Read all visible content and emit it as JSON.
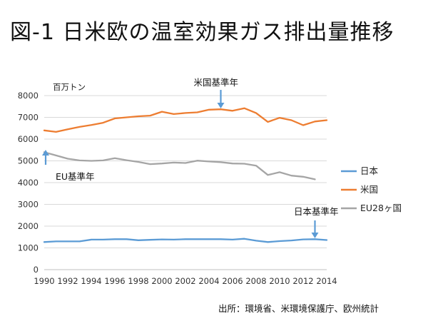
{
  "page": {
    "title": "図-1 日米欧の温室効果ガス排出量推移",
    "source": "出所：環境省、米環境保護庁、欧州統計"
  },
  "chart_data": {
    "type": "line",
    "unit_label": "百万トン",
    "x": [
      1990,
      1991,
      1992,
      1993,
      1994,
      1995,
      1996,
      1997,
      1998,
      1999,
      2000,
      2001,
      2002,
      2003,
      2004,
      2005,
      2006,
      2007,
      2008,
      2009,
      2010,
      2011,
      2012,
      2013,
      2014
    ],
    "x_tick_labels": [
      "1990",
      "1992",
      "1994",
      "1996",
      "1998",
      "2000",
      "2002",
      "2004",
      "2006",
      "2008",
      "2010",
      "2012",
      "2014"
    ],
    "y_tick_labels": [
      "0",
      "1000",
      "2000",
      "3000",
      "4000",
      "5000",
      "6000",
      "7000",
      "8000"
    ],
    "ylim": [
      0,
      8000
    ],
    "grid": "horizontal",
    "legend_position": "right",
    "series": [
      {
        "name": "日本",
        "color": "#5b9bd5",
        "values": [
          1270,
          1300,
          1300,
          1300,
          1380,
          1380,
          1400,
          1400,
          1350,
          1370,
          1390,
          1380,
          1400,
          1400,
          1400,
          1400,
          1380,
          1420,
          1330,
          1270,
          1310,
          1340,
          1390,
          1400,
          1360
        ]
      },
      {
        "name": "米国",
        "color": "#ed7d31",
        "values": [
          6400,
          6330,
          6450,
          6560,
          6650,
          6750,
          6950,
          7000,
          7050,
          7080,
          7260,
          7150,
          7200,
          7230,
          7350,
          7370,
          7300,
          7420,
          7200,
          6790,
          6980,
          6870,
          6640,
          6810,
          6870
        ]
      },
      {
        "name": "EU28ヶ国",
        "color": "#a5a5a5",
        "values": [
          5400,
          5250,
          5100,
          5020,
          5000,
          5020,
          5120,
          5030,
          4950,
          4850,
          4880,
          4920,
          4900,
          5010,
          4970,
          4940,
          4880,
          4870,
          4780,
          4350,
          4480,
          4320,
          4270,
          4150,
          null
        ]
      }
    ],
    "annotations": [
      {
        "text": "米国基準年",
        "year": 2005,
        "series": "米国"
      },
      {
        "text": "EU基準年",
        "year": 1990,
        "series": "EU28ヶ国"
      },
      {
        "text": "日本基準年",
        "year": 2013,
        "series": "日本"
      }
    ],
    "arrow_color": "#5b9bd5"
  }
}
